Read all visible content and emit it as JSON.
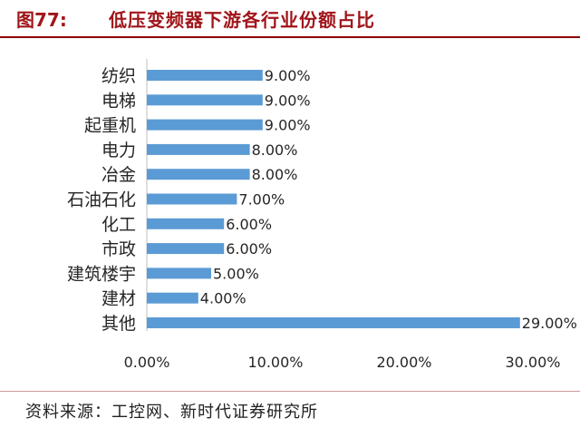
{
  "figure": {
    "number": "图77:",
    "title": "低压变频器下游各行业份额占比",
    "source": "资料来源：工控网、新时代证券研究所"
  },
  "chart_data": {
    "type": "bar",
    "orientation": "horizontal",
    "categories": [
      "纺织",
      "电梯",
      "起重机",
      "电力",
      "冶金",
      "石油石化",
      "化工",
      "市政",
      "建筑楼宇",
      "建材",
      "其他"
    ],
    "values": [
      9.0,
      9.0,
      9.0,
      8.0,
      8.0,
      7.0,
      6.0,
      6.0,
      5.0,
      4.0,
      29.0
    ],
    "data_labels": [
      "9.00%",
      "9.00%",
      "9.00%",
      "8.00%",
      "8.00%",
      "7.00%",
      "6.00%",
      "6.00%",
      "5.00%",
      "4.00%",
      "29.00%"
    ],
    "x_ticks": [
      0,
      10,
      20,
      30
    ],
    "x_tick_labels": [
      "0.00%",
      "10.00%",
      "20.00%",
      "30.00%"
    ],
    "xlim": [
      0,
      30
    ],
    "grid": false,
    "bar_color": "#5b9bd5",
    "title": "",
    "xlabel": "",
    "ylabel": ""
  }
}
